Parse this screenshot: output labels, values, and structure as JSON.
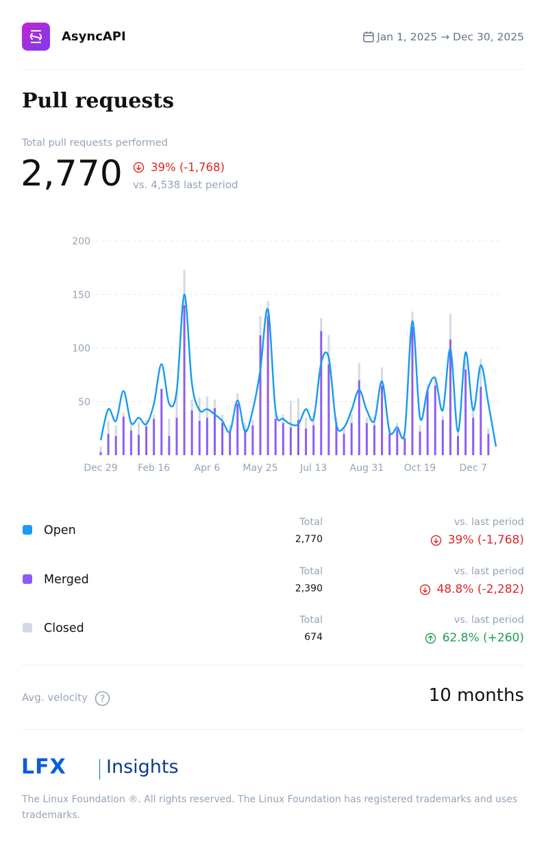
{
  "header": {
    "project": "AsyncAPI",
    "date_range": "Jan 1, 2025 → Dec 30, 2025"
  },
  "title": "Pull requests",
  "summary": {
    "label": "Total pull requests performed",
    "value": "2,770",
    "change": "39% (-1,768)",
    "comparison": "vs. 4,538 last period"
  },
  "chart_data": {
    "type": "bar-line",
    "categories": [
      "Dec 29",
      null,
      null,
      null,
      null,
      null,
      null,
      "Feb 16",
      null,
      null,
      null,
      null,
      null,
      null,
      "Apr 6",
      null,
      null,
      null,
      null,
      null,
      null,
      "May 25",
      null,
      null,
      null,
      null,
      null,
      null,
      "Jul 13",
      null,
      null,
      null,
      null,
      null,
      null,
      "Aug 31",
      null,
      null,
      null,
      null,
      null,
      null,
      "Oct 19",
      null,
      null,
      null,
      null,
      null,
      null,
      "Dec 7",
      null,
      null,
      null
    ],
    "ylim": [
      0,
      200
    ],
    "yticks": [
      50,
      100,
      150,
      200
    ],
    "grid": true,
    "series": [
      {
        "name": "Open",
        "color": "#1a9cf0",
        "kind": "line",
        "values": [
          14,
          43,
          32,
          60,
          30,
          35,
          29,
          48,
          85,
          48,
          60,
          150,
          67,
          42,
          43,
          38,
          32,
          22,
          51,
          22,
          42,
          80,
          136,
          42,
          34,
          29,
          29,
          43,
          34,
          86,
          91,
          29,
          26,
          42,
          61,
          42,
          32,
          69,
          22,
          26,
          22,
          125,
          35,
          61,
          72,
          42,
          99,
          22,
          96,
          42,
          84,
          48,
          8
        ]
      },
      {
        "name": "Merged",
        "color": "#8b5cf6",
        "kind": "bar",
        "values": [
          3,
          20,
          18,
          36,
          23,
          19,
          27,
          34,
          62,
          18,
          35,
          140,
          42,
          32,
          35,
          44,
          30,
          22,
          48,
          24,
          28,
          112,
          130,
          34,
          30,
          26,
          33,
          25,
          28,
          116,
          85,
          30,
          20,
          30,
          70,
          30,
          28,
          65,
          20,
          24,
          16,
          120,
          22,
          60,
          65,
          33,
          108,
          18,
          80,
          35,
          64,
          20,
          0
        ]
      },
      {
        "name": "Closed",
        "color": "#d3d9e2",
        "kind": "bar",
        "values": [
          5,
          12,
          10,
          4,
          8,
          12,
          6,
          4,
          0,
          16,
          25,
          33,
          10,
          22,
          20,
          8,
          8,
          6,
          10,
          6,
          5,
          18,
          14,
          5,
          8,
          25,
          20,
          10,
          12,
          12,
          27,
          5,
          6,
          8,
          16,
          5,
          8,
          17,
          6,
          6,
          6,
          14,
          6,
          6,
          6,
          4,
          24,
          7,
          8,
          8,
          26,
          5,
          0
        ]
      }
    ]
  },
  "rows": [
    {
      "total_label": "Total",
      "total": "2,770",
      "comparison_label": "vs. last period",
      "change": "39% (-1,768)"
    },
    {
      "total_label": "Total",
      "total": "2,390",
      "comparison_label": "vs. last period",
      "change": "48.8% (-2,282)"
    },
    {
      "total_label": "Total",
      "total": "674",
      "comparison_label": "vs. last period",
      "change": "62.8% (+260)"
    }
  ],
  "velocity": {
    "label": "Avg. velocity",
    "value": "10 months"
  },
  "footer": {
    "logo": "LFX",
    "brand": "Insights",
    "copyright": "The Linux Foundation ®. All rights reserved. The Linux Foundation has registered trademarks and uses trademarks."
  }
}
